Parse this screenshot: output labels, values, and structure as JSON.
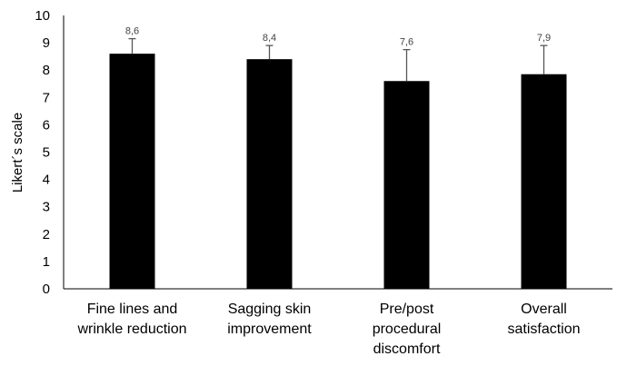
{
  "chart_data": {
    "type": "bar",
    "title": "",
    "xlabel": "",
    "ylabel": "Likert´s scale",
    "ylim": [
      0,
      10
    ],
    "yticks": [
      "0",
      "1",
      "2",
      "3",
      "4",
      "5",
      "6",
      "7",
      "8",
      "9",
      "10"
    ],
    "grid": false,
    "legend": "none",
    "categories": [
      [
        "Fine lines and",
        "wrinkle reduction"
      ],
      [
        "Sagging skin",
        "improvement"
      ],
      [
        "Pre/post",
        "procedural",
        "discomfort"
      ],
      [
        "Overall",
        "satisfaction"
      ]
    ],
    "values": [
      8.6,
      8.4,
      7.6,
      7.85
    ],
    "error_upper": [
      9.15,
      8.9,
      8.75,
      8.9
    ],
    "data_labels": [
      "8,6",
      "8,4",
      "7,6",
      "7,9"
    ],
    "colors": {
      "bar": "#000000",
      "axis": "#000000",
      "error_bar": "#555555"
    }
  }
}
